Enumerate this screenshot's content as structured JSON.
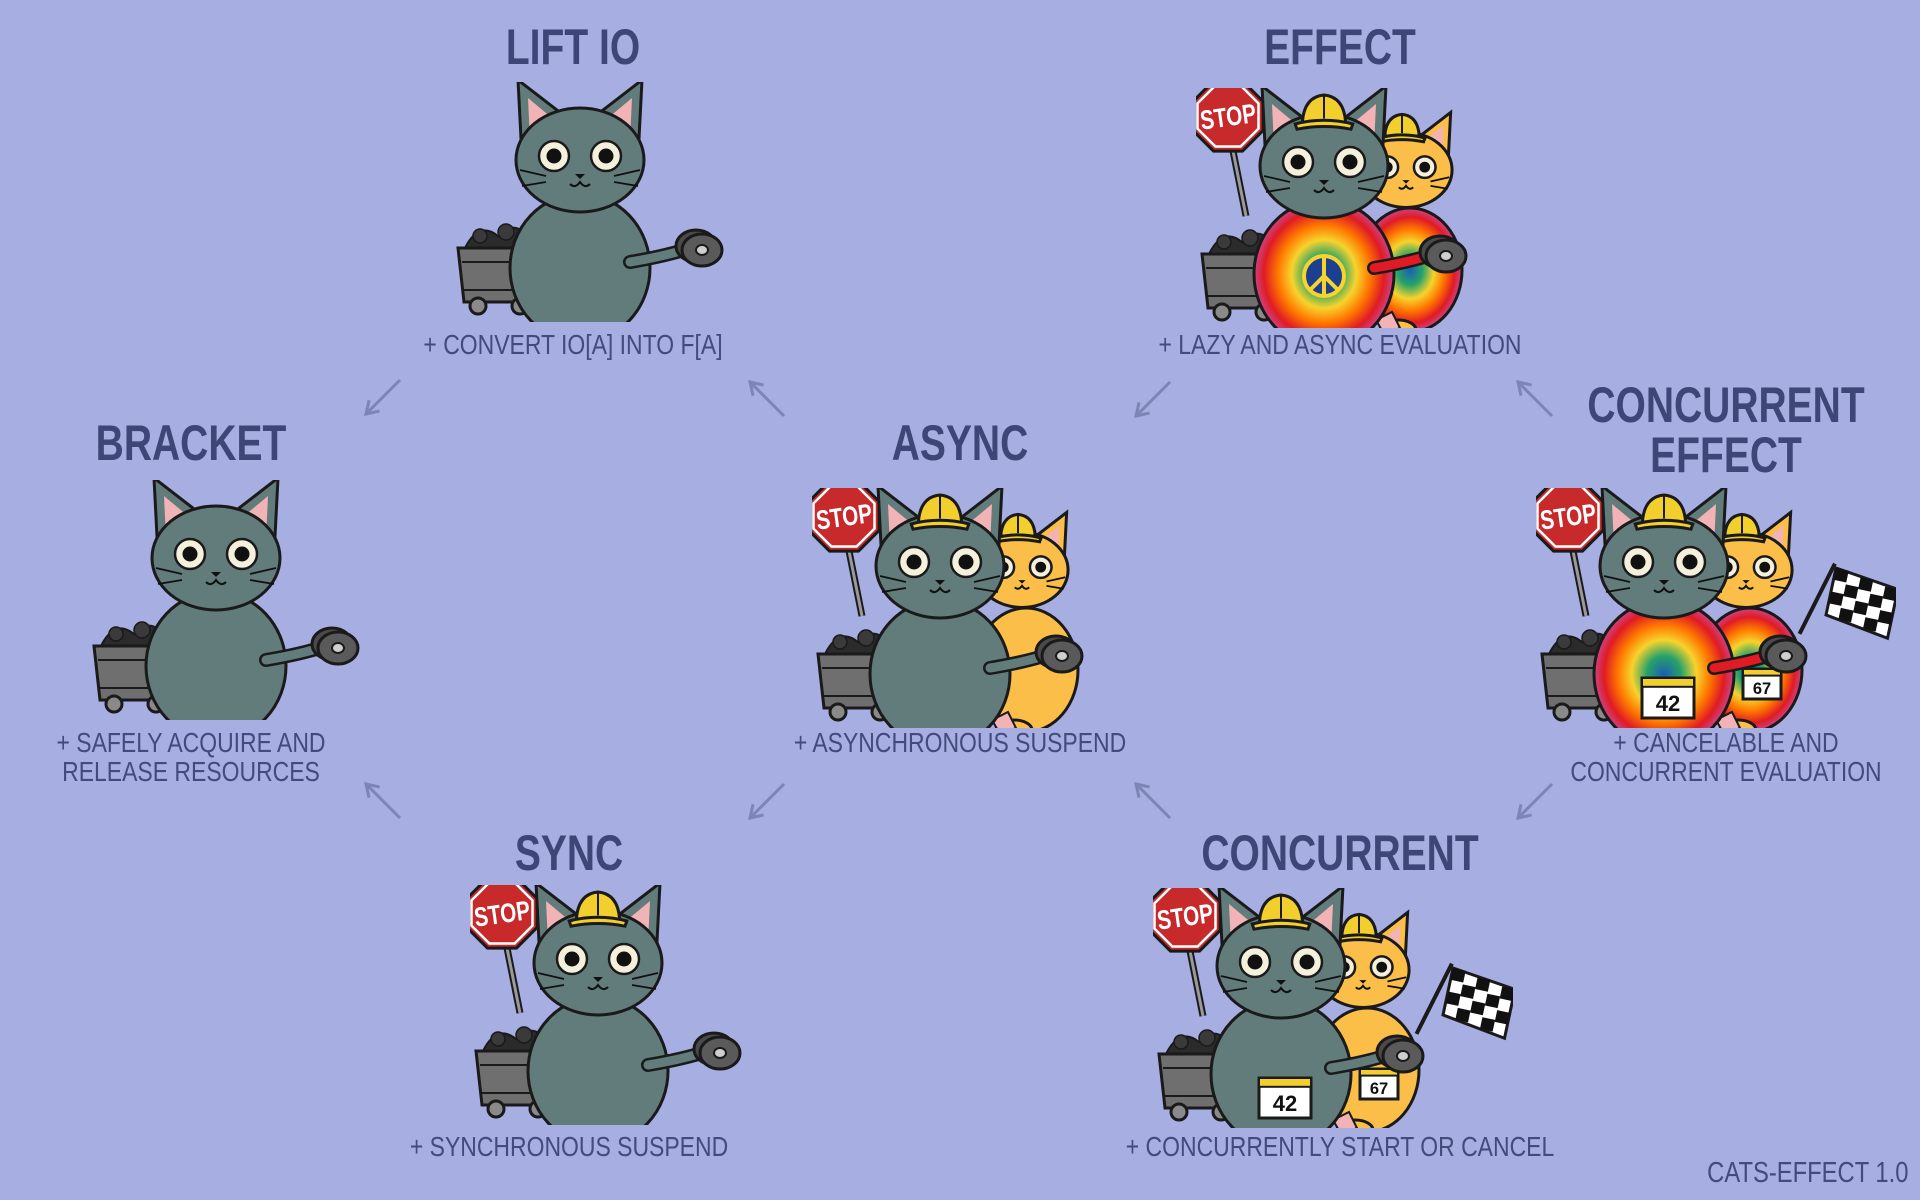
{
  "nodes": [
    {
      "id": "lift-io",
      "title": [
        "LIFT IO"
      ],
      "description": [
        "+  CONVERT IO[A] INTO F[A]"
      ],
      "cats": {
        "main": {
          "hat": false,
          "sign": false,
          "shirt": false,
          "bib": null
        },
        "friend": null,
        "flag": false
      }
    },
    {
      "id": "effect",
      "title": [
        "EFFECT"
      ],
      "description": [
        "+ LAZY AND ASYNC EVALUATION"
      ],
      "cats": {
        "main": {
          "hat": true,
          "sign": true,
          "shirt": "tiedye-peace",
          "bib": null
        },
        "friend": {
          "shirt": "tiedye",
          "bib": null
        },
        "flag": false
      }
    },
    {
      "id": "bracket",
      "title": [
        "BRACKET"
      ],
      "description": [
        "+ SAFELY ACQUIRE AND",
        "RELEASE RESOURCES"
      ],
      "cats": {
        "main": {
          "hat": false,
          "sign": false,
          "shirt": false,
          "bib": null
        },
        "friend": null,
        "flag": false
      }
    },
    {
      "id": "async",
      "title": [
        "ASYNC"
      ],
      "description": [
        "+ ASYNCHRONOUS SUSPEND"
      ],
      "cats": {
        "main": {
          "hat": true,
          "sign": true,
          "shirt": false,
          "bib": null
        },
        "friend": {
          "shirt": false,
          "bib": null
        },
        "flag": false
      }
    },
    {
      "id": "concurrent-effect",
      "title": [
        "CONCURRENT",
        "EFFECT"
      ],
      "description": [
        "+ CANCELABLE AND",
        "CONCURRENT EVALUATION"
      ],
      "cats": {
        "main": {
          "hat": true,
          "sign": true,
          "shirt": "tiedye",
          "bib": "42"
        },
        "friend": {
          "shirt": "tiedye",
          "bib": "67"
        },
        "flag": true
      }
    },
    {
      "id": "sync",
      "title": [
        "SYNC"
      ],
      "description": [
        "+  SYNCHRONOUS SUSPEND"
      ],
      "cats": {
        "main": {
          "hat": true,
          "sign": true,
          "shirt": false,
          "bib": null
        },
        "friend": null,
        "flag": false
      }
    },
    {
      "id": "concurrent",
      "title": [
        "CONCURRENT"
      ],
      "description": [
        "+  CONCURRENTLY START OR CANCEL"
      ],
      "cats": {
        "main": {
          "hat": true,
          "sign": true,
          "shirt": false,
          "bib": "42"
        },
        "friend": {
          "shirt": false,
          "bib": "67"
        },
        "flag": true
      }
    }
  ],
  "edges": [
    {
      "from": "sync",
      "to": "bracket"
    },
    {
      "from": "sync",
      "to": "async"
    },
    {
      "from": "async",
      "to": "lift-io"
    },
    {
      "from": "lift-io",
      "to": "bracket"
    },
    {
      "from": "async",
      "to": "effect"
    },
    {
      "from": "concurrent",
      "to": "async"
    },
    {
      "from": "concurrent-effect",
      "to": "effect"
    },
    {
      "from": "concurrent-effect",
      "to": "concurrent"
    }
  ],
  "sign_text": "STOP",
  "footer": {
    "version": "CATS-EFFECT 1.0"
  },
  "colors": {
    "background": "#a6aee2",
    "title": "#3e4677",
    "text": "#434b7c",
    "arrow": "#7d84b6",
    "cat_gray": "#627c7b",
    "cat_orange": "#fbbf49",
    "ear_pink": "#f1b3b5",
    "hat_yellow": "#f2cf2c",
    "stop_red": "#c82a2c",
    "cart": "#6f6f6f",
    "coal": "#2b2b2b",
    "outline": "#1a1a1a"
  }
}
